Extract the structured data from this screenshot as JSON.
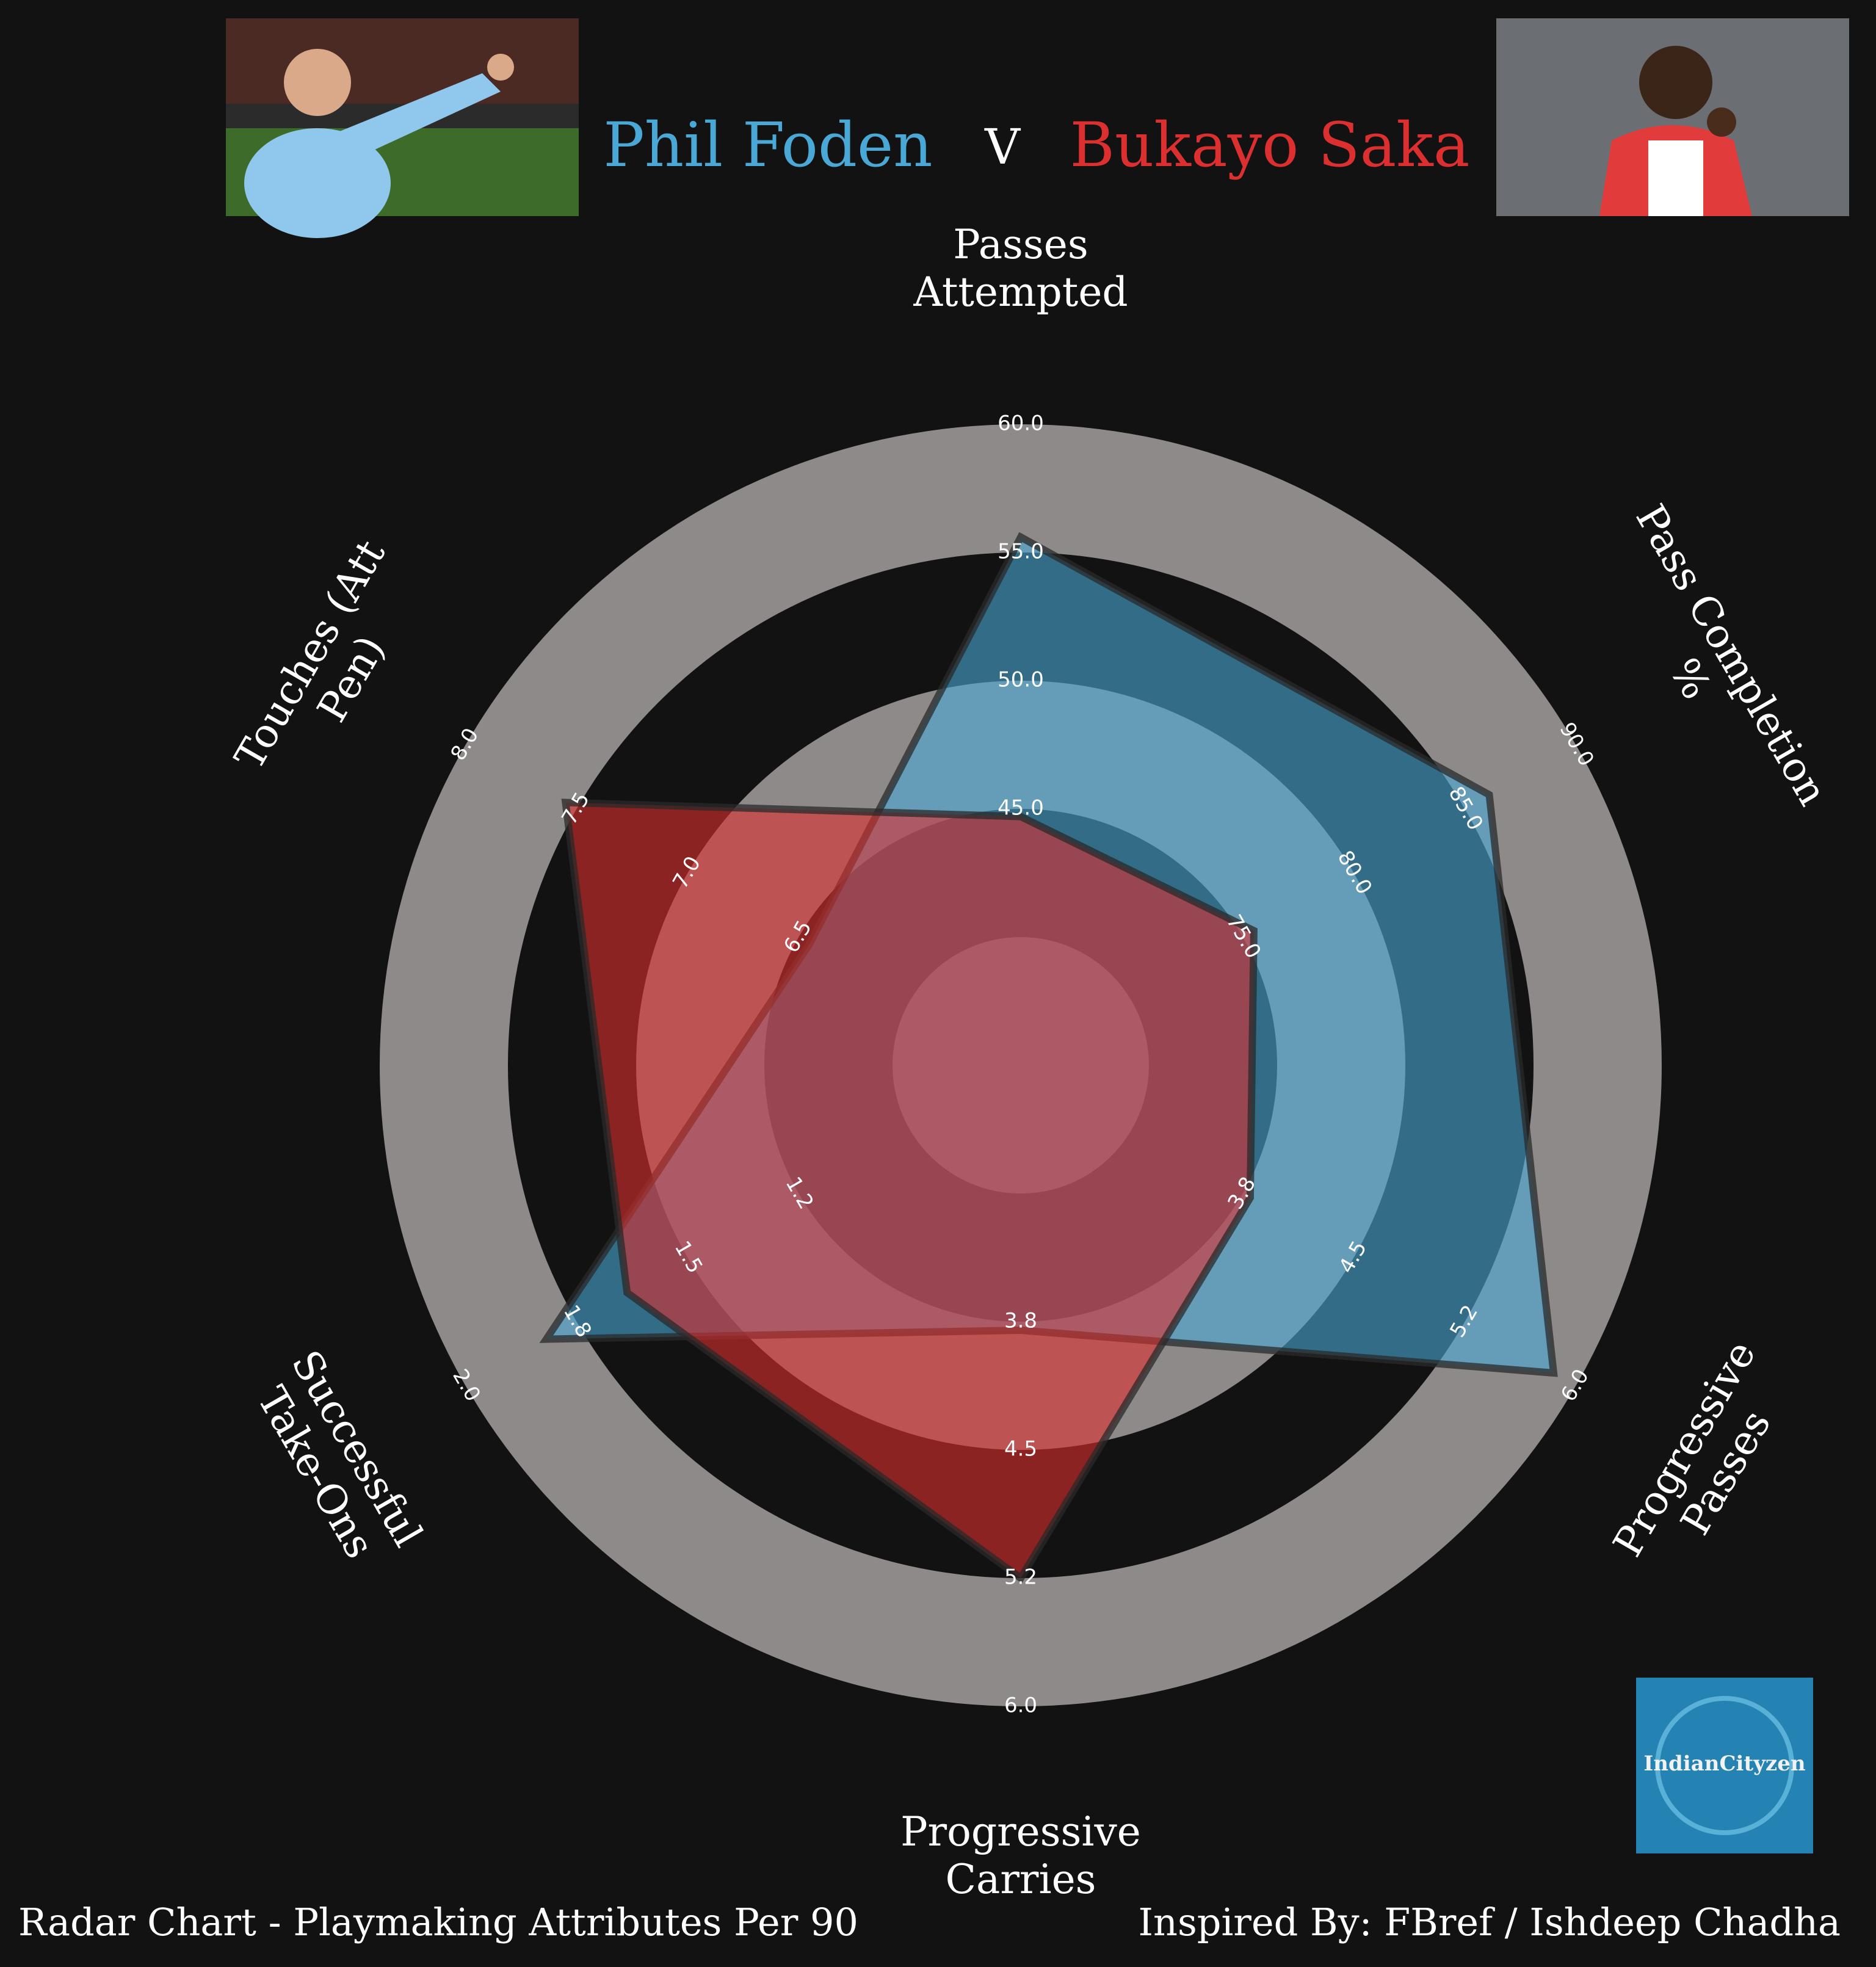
{
  "header": {
    "player_a": "Phil Foden",
    "versus": "V",
    "player_b": "Bukayo Saka"
  },
  "footer": {
    "left": "Radar Chart - Playmaking Attributes Per 90",
    "right": "Inspired By: FBref / Ishdeep Chadha"
  },
  "logo": {
    "text": "IndianCityzen"
  },
  "colors": {
    "background": "#121212",
    "player_a": "#4aa8d6",
    "player_b": "#dc2f2f",
    "ring": "#8e8a8a"
  },
  "chart_data": {
    "type": "radar",
    "axes": [
      {
        "label": [
          "Passes",
          "Attempted"
        ],
        "ticks": [
          "45.0",
          "50.0",
          "55.0",
          "60.0"
        ],
        "min": 40,
        "max": 60
      },
      {
        "label": [
          "Pass Completion",
          "%"
        ],
        "ticks": [
          "75.0",
          "80.0",
          "85.0",
          "90.0"
        ],
        "min": 70,
        "max": 90
      },
      {
        "label": [
          "Progressive",
          "Passes"
        ],
        "ticks": [
          "3.8",
          "4.5",
          "5.2",
          "6.0"
        ],
        "min": 3.0,
        "max": 6.0
      },
      {
        "label": [
          "Progressive",
          "Carries"
        ],
        "ticks": [
          "3.8",
          "4.5",
          "5.2",
          "6.0"
        ],
        "min": 3.0,
        "max": 6.0
      },
      {
        "label": [
          "Successful",
          "Take-Ons"
        ],
        "ticks": [
          "1.2",
          "1.5",
          "1.8",
          "2.0"
        ],
        "min": 0.9,
        "max": 2.0
      },
      {
        "label": [
          "Touches (Att",
          "Pen)"
        ],
        "ticks": [
          "6.5",
          "7.0",
          "7.5",
          "8.0"
        ],
        "min": 6.0,
        "max": 8.0
      }
    ],
    "series": [
      {
        "name": "Phil Foden",
        "color": "#4aa8d6",
        "values": [
          55.6,
          86.1,
          5.85,
          3.8,
          1.8,
          6.45
        ]
      },
      {
        "name": "Bukayo Saka",
        "color": "#dc2f2f",
        "values": [
          44.7,
          75.5,
          3.8,
          5.25,
          1.6,
          7.55
        ]
      }
    ]
  }
}
